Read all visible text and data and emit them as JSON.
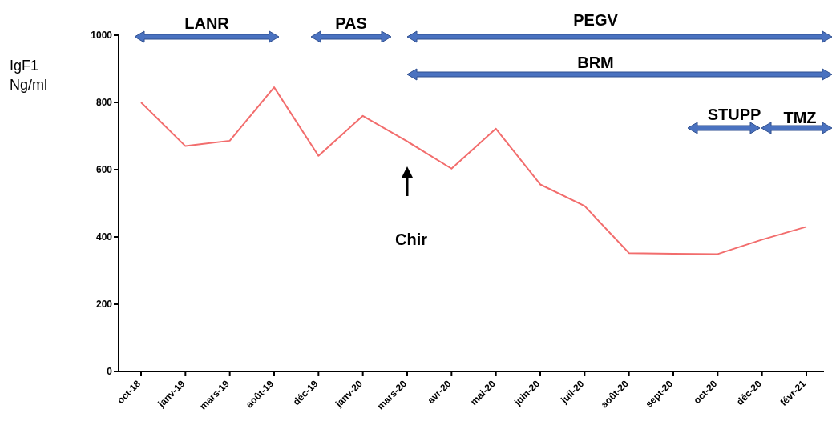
{
  "chart_data": {
    "type": "line",
    "ylabel": "IgF1\nNg/ml",
    "categories": [
      "oct-18",
      "janv-19",
      "mars-19",
      "août-19",
      "déc-19",
      "janv-20",
      "mars-20",
      "avr-20",
      "mai-20",
      "juin-20",
      "juil-20",
      "août-20",
      "sept-20",
      "oct-20",
      "déc-20",
      "févr-21"
    ],
    "values": [
      800,
      670,
      686,
      845,
      641,
      760,
      684,
      603,
      722,
      556,
      492,
      352,
      350,
      349,
      392,
      430
    ],
    "color": "#f26d6d",
    "ylim": [
      0,
      1000
    ],
    "yticks": [
      0,
      200,
      400,
      600,
      800,
      1000
    ],
    "annotations": [
      "LANR",
      "PAS",
      "PEGV",
      "BRM",
      "STUPP",
      "TMZ",
      "Chir"
    ]
  }
}
